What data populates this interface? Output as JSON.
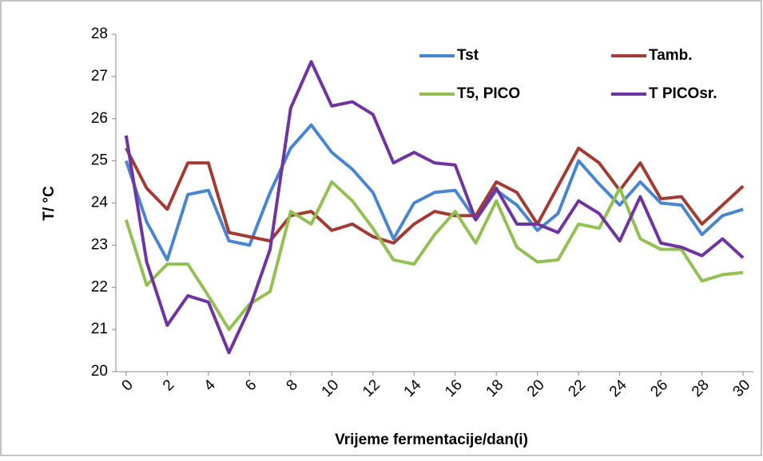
{
  "chart_data": {
    "type": "line",
    "x_label": "Vrijeme fermentacije/dan(i)",
    "y_label": "T/ °C",
    "x": [
      0,
      1,
      2,
      3,
      4,
      5,
      6,
      7,
      8,
      9,
      10,
      11,
      12,
      13,
      14,
      15,
      16,
      17,
      18,
      19,
      20,
      21,
      22,
      23,
      24,
      25,
      26,
      27,
      28,
      29,
      30
    ],
    "series": [
      {
        "name": "Tst",
        "color": "#4a86d0",
        "values": [
          25.0,
          23.55,
          22.65,
          24.2,
          24.3,
          23.1,
          23.0,
          24.25,
          25.3,
          25.85,
          25.2,
          24.8,
          24.25,
          23.15,
          24.0,
          24.25,
          24.3,
          23.6,
          24.3,
          23.95,
          23.35,
          23.75,
          25.0,
          24.45,
          23.95,
          24.5,
          24.0,
          23.95,
          23.25,
          23.7,
          23.85
        ]
      },
      {
        "name": "Tamb.",
        "color": "#a33b35",
        "values": [
          25.3,
          24.35,
          23.85,
          24.95,
          24.95,
          23.3,
          23.2,
          23.1,
          23.7,
          23.8,
          23.35,
          23.5,
          23.2,
          23.05,
          23.5,
          23.8,
          23.7,
          23.7,
          24.5,
          24.25,
          23.5,
          24.4,
          25.3,
          24.95,
          24.3,
          24.95,
          24.1,
          24.15,
          23.5,
          23.95,
          24.4
        ]
      },
      {
        "name": "T5, PICO",
        "color": "#93c052",
        "values": [
          23.6,
          22.05,
          22.55,
          22.55,
          21.8,
          21.0,
          21.6,
          21.9,
          23.8,
          23.5,
          24.5,
          24.05,
          23.4,
          22.65,
          22.55,
          23.25,
          23.8,
          23.05,
          24.05,
          22.95,
          22.6,
          22.65,
          23.5,
          23.4,
          24.35,
          23.15,
          22.9,
          22.9,
          22.15,
          22.3,
          22.35
        ]
      },
      {
        "name": "T PICOsr.",
        "color": "#7034a0",
        "values": [
          25.6,
          22.6,
          21.1,
          21.8,
          21.65,
          20.45,
          21.5,
          22.9,
          26.25,
          27.35,
          26.3,
          26.4,
          26.1,
          24.95,
          25.2,
          24.95,
          24.9,
          23.6,
          24.35,
          23.5,
          23.5,
          23.3,
          24.05,
          23.75,
          23.1,
          24.15,
          23.05,
          22.95,
          22.75,
          23.15,
          22.7
        ]
      }
    ],
    "xlim": [
      -0.5,
      30.5
    ],
    "xticks": [
      0,
      2,
      4,
      6,
      8,
      10,
      12,
      14,
      16,
      18,
      20,
      22,
      24,
      26,
      28,
      30
    ],
    "ylim": [
      20,
      28
    ],
    "yticks": [
      20,
      21,
      22,
      23,
      24,
      25,
      26,
      27,
      28
    ],
    "grid": false,
    "legend": "top-right"
  }
}
